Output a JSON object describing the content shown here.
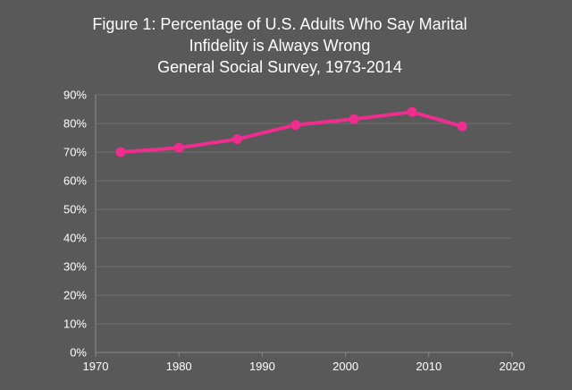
{
  "chart_data": {
    "type": "line",
    "title": [
      "Figure 1: Percentage of U.S. Adults Who Say Marital",
      "Infidelity is Always Wrong",
      "General Social Survey, 1973-2014"
    ],
    "xlabel": "",
    "ylabel": "",
    "xlim": [
      1970,
      2020
    ],
    "ylim": [
      0,
      90
    ],
    "x_ticks": [
      1970,
      1980,
      1990,
      2000,
      2010,
      2020
    ],
    "x_tick_labels": [
      "1970",
      "1980",
      "1990",
      "2000",
      "2010",
      "2020"
    ],
    "y_ticks": [
      0,
      10,
      20,
      30,
      40,
      50,
      60,
      70,
      80,
      90
    ],
    "y_tick_labels": [
      "0%",
      "10%",
      "20%",
      "30%",
      "40%",
      "50%",
      "60%",
      "70%",
      "80%",
      "90%"
    ],
    "grid": true,
    "legend": "none",
    "series": [
      {
        "x": [
          1973,
          1980,
          1987,
          1994,
          2001,
          2008,
          2014
        ],
        "values": [
          70,
          71.5,
          74.5,
          79.5,
          81.5,
          84,
          79
        ],
        "color": "#ee2d8e"
      }
    ]
  },
  "colors": {
    "background": "#595959",
    "text": "#ffffff",
    "grid": "#6e6e6e",
    "series": "#ee2d8e"
  }
}
